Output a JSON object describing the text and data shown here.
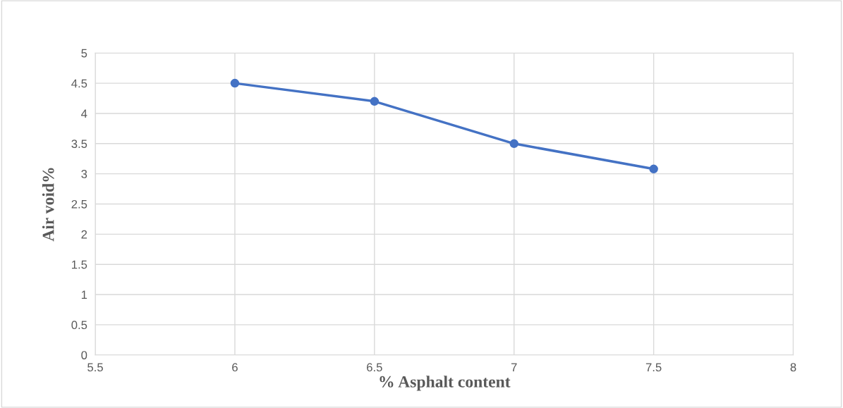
{
  "chart_data": {
    "type": "line",
    "xlabel": "% Asphalt content",
    "ylabel": "Air void%",
    "x": [
      6,
      6.5,
      7,
      7.5
    ],
    "series": [
      {
        "color": "#4472c4",
        "values": [
          4.5,
          4.2,
          3.5,
          3.08
        ]
      }
    ],
    "xlim": [
      5.5,
      8
    ],
    "xticks": [
      5.5,
      6,
      6.5,
      7,
      7.5,
      8
    ],
    "ylim": [
      0,
      5
    ],
    "yticks": [
      0,
      0.5,
      1,
      1.5,
      2,
      2.5,
      3,
      3.5,
      4,
      4.5,
      5
    ],
    "grid": true,
    "marker": "circle",
    "line_style": "solid",
    "legend": false
  }
}
